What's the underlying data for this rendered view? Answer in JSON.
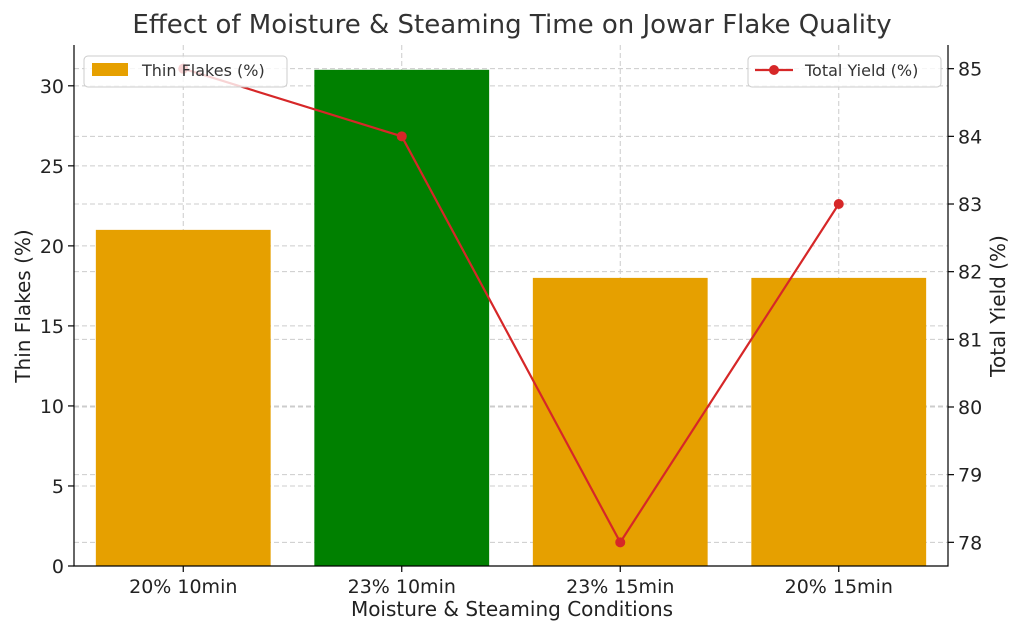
{
  "chart_data": {
    "type": "bar+line",
    "title": "Effect of Moisture & Steaming Time on Jowar Flake Quality",
    "xlabel": "Moisture & Steaming Conditions",
    "categories": [
      "20% 10min",
      "23% 10min",
      "23% 15min",
      "20% 15min"
    ],
    "bar_series": {
      "name": "Thin Flakes (%)",
      "values": [
        21,
        31,
        18,
        18
      ],
      "colors": [
        "#e6a000",
        "#008000",
        "#e6a000",
        "#e6a000"
      ],
      "legend_color": "#e6a000",
      "axis": "left"
    },
    "line_series": {
      "name": "Total Yield (%)",
      "values": [
        85,
        84,
        78,
        83
      ],
      "color": "#d62728",
      "axis": "right"
    },
    "left_axis": {
      "label": "Thin Flakes (%)",
      "ylim": [
        0,
        32.55
      ],
      "ticks": [
        0,
        5,
        10,
        15,
        20,
        25,
        30
      ]
    },
    "right_axis": {
      "label": "Total Yield (%)",
      "ylim": [
        77.65,
        85.35
      ],
      "ticks": [
        78,
        79,
        80,
        81,
        82,
        83,
        84,
        85
      ]
    },
    "grid": true,
    "legends": {
      "bar": "top-left",
      "line": "top-right"
    }
  }
}
